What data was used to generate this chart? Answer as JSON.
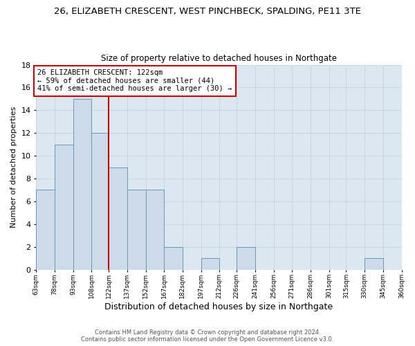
{
  "title1": "26, ELIZABETH CRESCENT, WEST PINCHBECK, SPALDING, PE11 3TE",
  "title2": "Size of property relative to detached houses in Northgate",
  "xlabel": "Distribution of detached houses by size in Northgate",
  "ylabel": "Number of detached properties",
  "bin_edges": [
    63,
    78,
    93,
    108,
    122,
    137,
    152,
    167,
    182,
    197,
    212,
    226,
    241,
    256,
    271,
    286,
    301,
    315,
    330,
    345,
    360
  ],
  "bin_counts": [
    7,
    11,
    15,
    12,
    9,
    7,
    7,
    2,
    0,
    1,
    0,
    2,
    0,
    0,
    0,
    0,
    0,
    0,
    1,
    0
  ],
  "bar_color": "#ccdaea",
  "bar_edge_color": "#6699bb",
  "vline_x": 122,
  "vline_color": "#cc0000",
  "annotation_line1": "26 ELIZABETH CRESCENT: 122sqm",
  "annotation_line2": "← 59% of detached houses are smaller (44)",
  "annotation_line3": "41% of semi-detached houses are larger (30) →",
  "annotation_box_color": "#ffffff",
  "annotation_box_edge": "#cc0000",
  "tick_labels": [
    "63sqm",
    "78sqm",
    "93sqm",
    "108sqm",
    "122sqm",
    "137sqm",
    "152sqm",
    "167sqm",
    "182sqm",
    "197sqm",
    "212sqm",
    "226sqm",
    "241sqm",
    "256sqm",
    "271sqm",
    "286sqm",
    "301sqm",
    "315sqm",
    "330sqm",
    "345sqm",
    "360sqm"
  ],
  "ylim": [
    0,
    18
  ],
  "yticks": [
    0,
    2,
    4,
    6,
    8,
    10,
    12,
    14,
    16,
    18
  ],
  "grid_color": "#c8d4de",
  "plot_bg_color": "#dce8f0",
  "fig_bg_color": "#ffffff",
  "footer1": "Contains HM Land Registry data © Crown copyright and database right 2024.",
  "footer2": "Contains public sector information licensed under the Open Government Licence v3.0."
}
